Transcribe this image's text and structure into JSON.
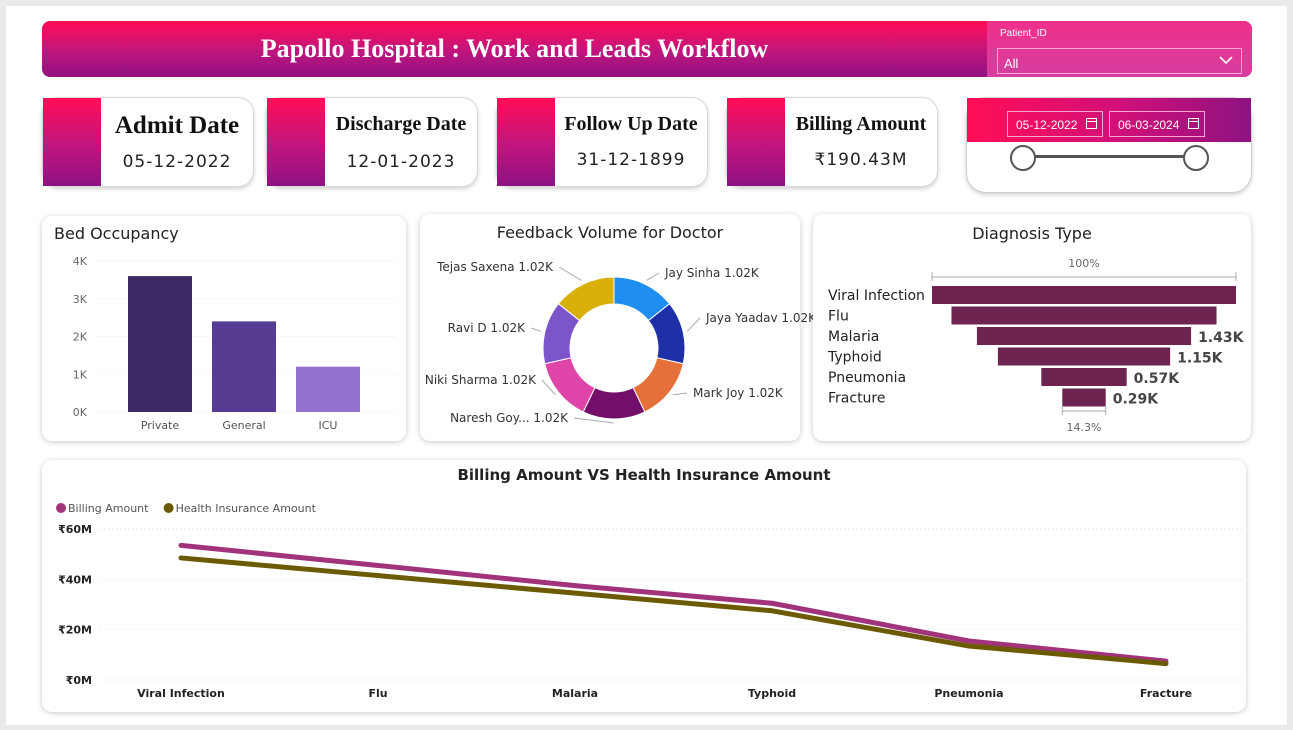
{
  "header": {
    "title": "Papollo Hospital : Work and Leads Workflow"
  },
  "patient_slicer": {
    "label": "Patient_ID",
    "value": "All"
  },
  "kpis": [
    {
      "title": "Admit Date",
      "value": "05-12-2022"
    },
    {
      "title": "Discharge Date",
      "value": "12-01-2023"
    },
    {
      "title": "Follow Up Date",
      "value": "31-12-1899"
    },
    {
      "title": "Billing Amount",
      "value": "₹190.43M"
    }
  ],
  "date_range": {
    "start": "05-12-2022",
    "end": "06-03-2024"
  },
  "colors": {
    "accent": "#e0147a",
    "purple_dark": "#3b2a63",
    "purple_mid": "#573b93",
    "purple_light": "#9273cf",
    "billing_line": "#a1337c",
    "insurance_line": "#6b5a00",
    "funnel": "#6e2350"
  },
  "icons": {
    "dropdown": "chevron-down-icon",
    "calendar": "calendar-icon"
  },
  "bed_occupancy": {
    "title": "Bed Occupancy",
    "chart_data": {
      "type": "bar",
      "categories": [
        "Private",
        "General",
        "ICU"
      ],
      "values": [
        3600,
        2400,
        1200
      ],
      "ylim": [
        0,
        4000
      ],
      "yticks": [
        "0K",
        "1K",
        "2K",
        "3K",
        "4K"
      ],
      "colors": [
        "#3b2a63",
        "#573b93",
        "#9273cf"
      ],
      "grid": true
    }
  },
  "feedback": {
    "title": "Feedback Volume for Doctor",
    "chart_data": {
      "type": "pie",
      "donut": true,
      "slices": [
        {
          "name": "Jay Sinha",
          "label": "1.02K",
          "value": 1020,
          "color": "#1f8ef0"
        },
        {
          "name": "Jaya Yaadav",
          "label": "1.02K",
          "value": 1020,
          "color": "#1f2fa8"
        },
        {
          "name": "Mark Joy",
          "label": "1.02K",
          "value": 1020,
          "color": "#e6703a"
        },
        {
          "name": "Naresh Goy...",
          "label": "1.02K",
          "value": 1020,
          "color": "#730f6b"
        },
        {
          "name": "Niki Sharma",
          "label": "1.02K",
          "value": 1020,
          "color": "#df45a9"
        },
        {
          "name": "Ravi D",
          "label": "1.02K",
          "value": 1020,
          "color": "#7b55c9"
        },
        {
          "name": "Tejas Saxena",
          "label": "1.02K",
          "value": 1020,
          "color": "#d9b00a"
        }
      ]
    }
  },
  "diagnosis": {
    "title": "Diagnosis Type",
    "top_pct": "100%",
    "bottom_pct": "14.3%",
    "chart_data": {
      "type": "bar",
      "orientation": "funnel",
      "categories": [
        "Viral Infection",
        "Flu",
        "Malaria",
        "Typhoid",
        "Pneumonia",
        "Fracture"
      ],
      "values": [
        2030,
        1770,
        1430,
        1150,
        570,
        290
      ],
      "labels": [
        "",
        "",
        "1.43K",
        "1.15K",
        "0.57K",
        "0.29K"
      ],
      "color": "#6e2350"
    }
  },
  "billing_vs_insurance": {
    "title": "Billing Amount VS Health Insurance Amount",
    "chart_data": {
      "type": "line",
      "categories": [
        "Viral Infection",
        "Flu",
        "Malaria",
        "Typhoid",
        "Pneumonia",
        "Fracture"
      ],
      "series": [
        {
          "name": "Billing Amount",
          "values": [
            53.5,
            45.5,
            37.5,
            30.5,
            15.5,
            7.5
          ],
          "color": "#a1337c"
        },
        {
          "name": "Health Insurance Amount",
          "values": [
            48.5,
            41.5,
            34.5,
            27.5,
            13.5,
            6.5
          ],
          "color": "#6b5a00"
        }
      ],
      "yticks": [
        "₹0M",
        "₹20M",
        "₹40M",
        "₹60M"
      ],
      "ylim": [
        0,
        60
      ],
      "legend": "top-left",
      "grid": true
    }
  }
}
